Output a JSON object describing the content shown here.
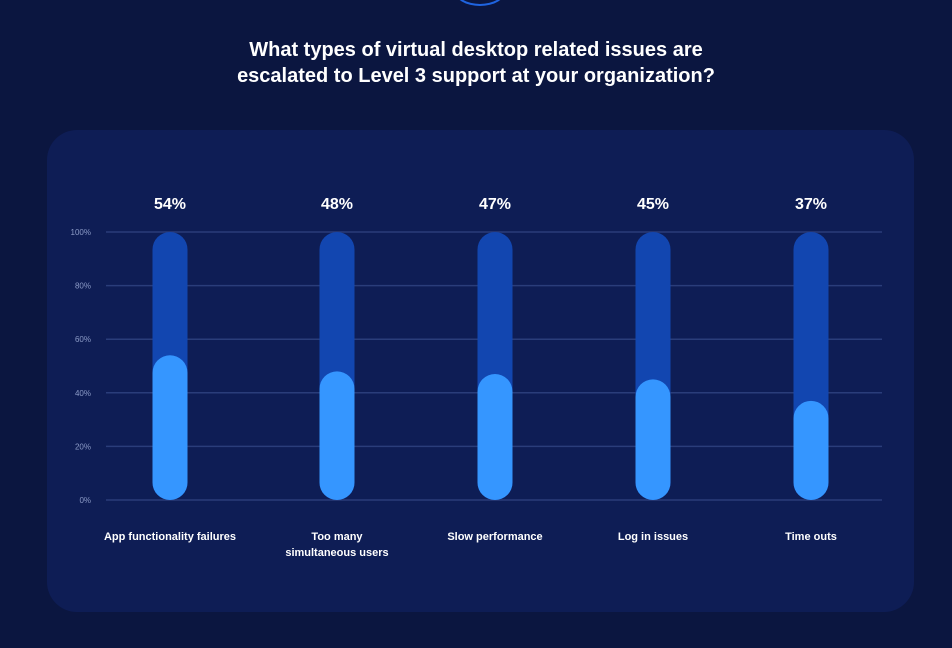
{
  "chart_data": {
    "type": "bar",
    "title_lines": [
      "What types of virtual desktop related issues are",
      "escalated to Level 3 support at your organization?"
    ],
    "categories": [
      "App functionality failures",
      "Too many simultaneous users",
      "Slow performance",
      "Log in issues",
      "Time outs"
    ],
    "value_labels": [
      "54%",
      "48%",
      "47%",
      "45%",
      "37%"
    ],
    "values": [
      54,
      48,
      47,
      45,
      37
    ],
    "y_ticks": [
      "100%",
      "80%",
      "60%",
      "40%",
      "20%",
      "0%"
    ],
    "ylim": [
      0,
      100
    ],
    "grid": true,
    "colors": {
      "track": "#1246b0",
      "fill": "#3596ff",
      "grid": "#2a3d7a",
      "panel": "#0e1d55",
      "background": "#0b1640"
    }
  }
}
